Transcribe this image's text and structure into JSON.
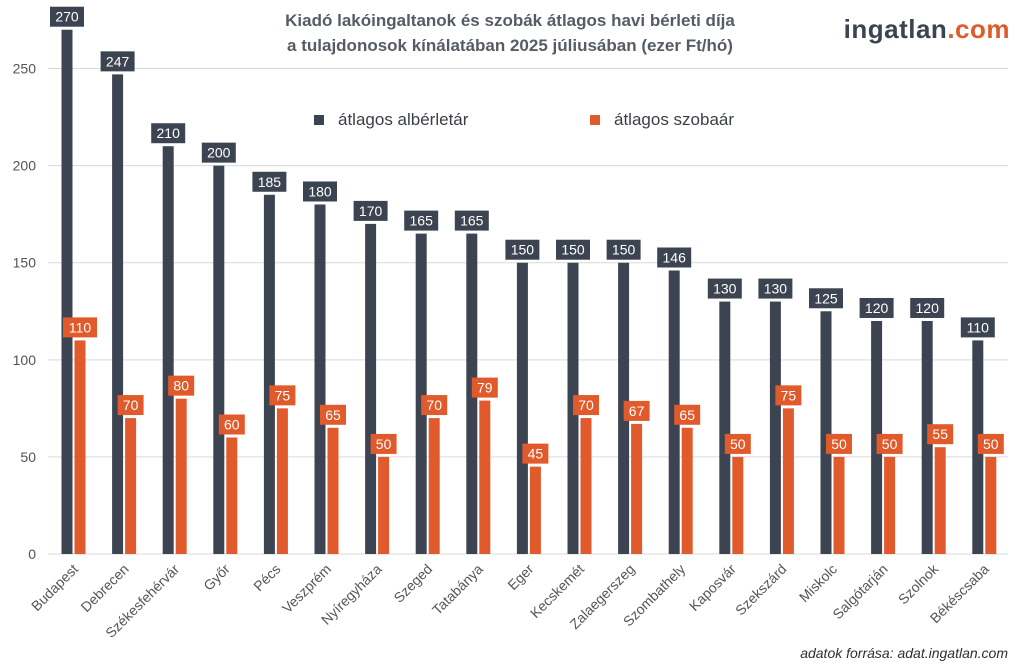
{
  "header": {
    "title_line1": "Kiadó lakóingaltanok és szobák átlagos havi bérleti díja",
    "title_line2": "a tulajdonosok kínálatában 2025 júliusában (ezer Ft/hó)"
  },
  "brand": {
    "part1": "ingatlan",
    "part2": ".com"
  },
  "footer": {
    "source": "adatok forrása: adat.ingatlan.com"
  },
  "colors": {
    "rent": "#3d4451",
    "room": "#e05a2b",
    "grid": "#d9d9d9",
    "axis_text": "#555555"
  },
  "chart_data": {
    "type": "bar",
    "title": "Kiadó lakóingaltanok és szobák átlagos havi bérleti díja a tulajdonosok kínálatában 2025 júliusában (ezer Ft/hó)",
    "xlabel": "",
    "ylabel": "",
    "ylim": [
      0,
      275
    ],
    "yticks": [
      0,
      50,
      100,
      150,
      200,
      250
    ],
    "grid": true,
    "legend_position": "top-center",
    "categories": [
      "Budapest",
      "Debrecen",
      "Székesfehérvár",
      "Győr",
      "Pécs",
      "Veszprém",
      "Nyíregyháza",
      "Szeged",
      "Tatabánya",
      "Eger",
      "Kecskemét",
      "Zalaegerszeg",
      "Szombathely",
      "Kaposvár",
      "Szekszárd",
      "Miskolc",
      "Salgótarján",
      "Szolnok",
      "Békéscsaba"
    ],
    "series": [
      {
        "name": "átlagos albérletár",
        "values": [
          270,
          247,
          210,
          200,
          185,
          180,
          170,
          165,
          165,
          150,
          150,
          150,
          146,
          130,
          130,
          125,
          120,
          120,
          110
        ]
      },
      {
        "name": "átlagos szobaár",
        "values": [
          110,
          70,
          80,
          60,
          75,
          65,
          50,
          70,
          79,
          45,
          70,
          67,
          65,
          50,
          75,
          50,
          50,
          55,
          50
        ]
      }
    ]
  }
}
